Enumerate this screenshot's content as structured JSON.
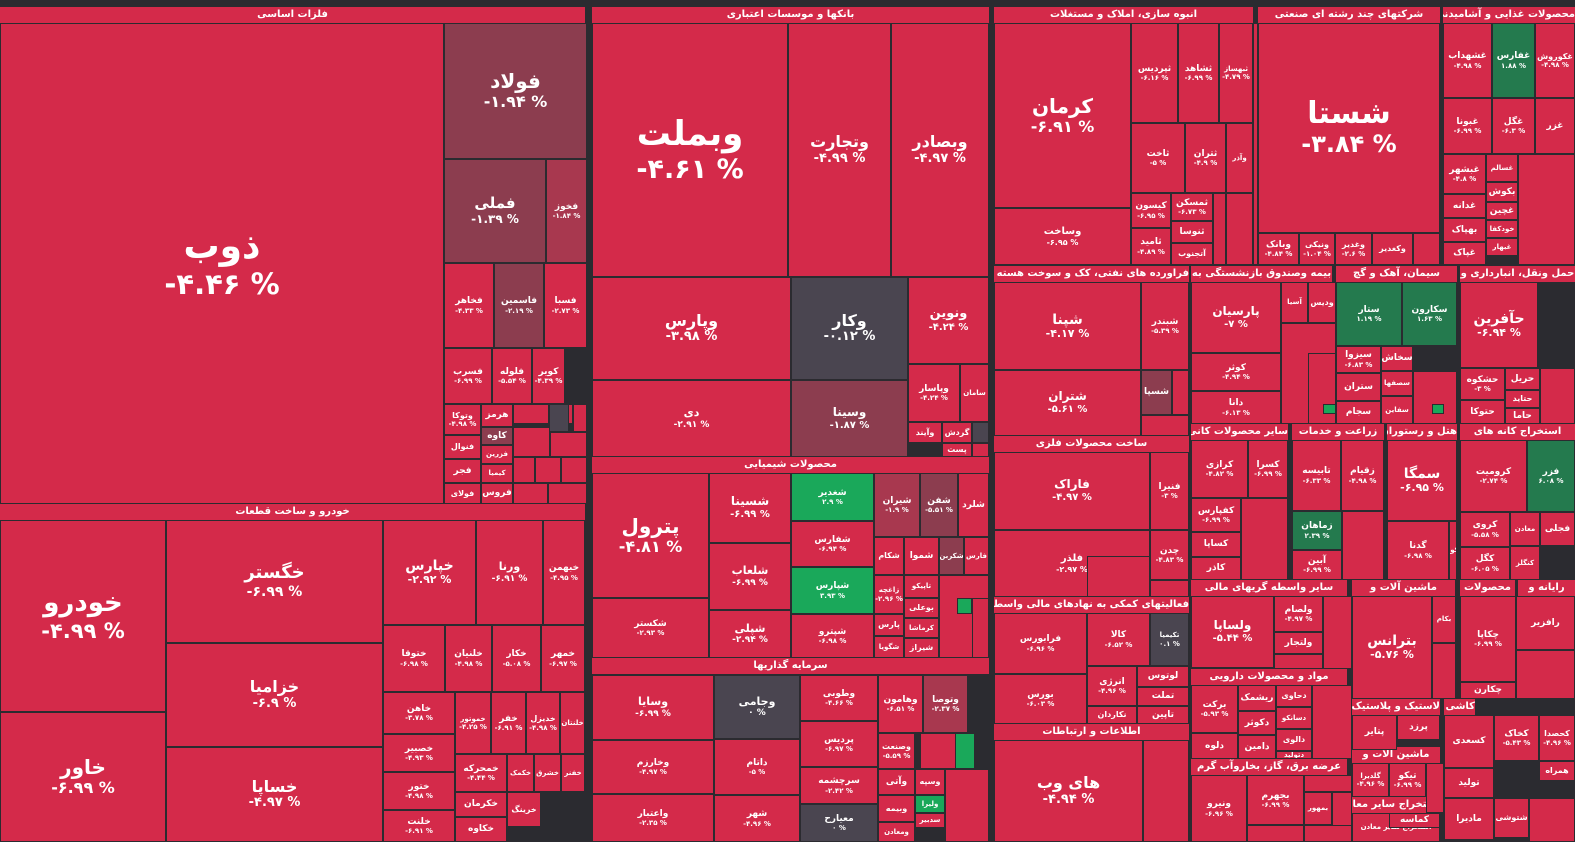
{
  "colors": {
    "red": "#d42a4a",
    "dark_red": "#8c3d4f",
    "mid_red": "#a8384f",
    "neutral": "#4a4550",
    "green": "#1aa85a",
    "dark_green": "#247a4e",
    "background": "#2b2b30"
  },
  "sectors": [
    {
      "name": "فلزات اساسی"
    },
    {
      "name": "بانکها و موسسات اعتباری"
    },
    {
      "name": "انبوه سازی، املاک و مستغلات"
    },
    {
      "name": "شرکتهای چند رشته ای صنعتی"
    },
    {
      "name": "محصولات غذایی و آشامیدنی"
    },
    {
      "name": "خودرو و ساخت قطعات"
    },
    {
      "name": "محصولات شیمیایی"
    },
    {
      "name": "سرمایه گذاریها"
    },
    {
      "name": "فراورده های نفتی، کک و سوخت هسته ای"
    },
    {
      "name": "بیمه وصندوق بازنشستگی به"
    },
    {
      "name": "سیمان، آهک و گچ"
    },
    {
      "name": "حمل ونقل، انبارداری و"
    },
    {
      "name": "ساخت محصولات فلزی"
    },
    {
      "name": "سایر محصولات کانی"
    },
    {
      "name": "زراعت و خدمات"
    },
    {
      "name": "هتل و رستوران"
    },
    {
      "name": "استخراج کانه های"
    },
    {
      "name": "فعالیتهای کمکی به نهادهای مالی واسط"
    },
    {
      "name": "سایر واسطه گریهای مالی"
    },
    {
      "name": "ماشین آلات و"
    },
    {
      "name": "محصولات"
    },
    {
      "name": "رایانه و"
    },
    {
      "name": "مواد و محصولات دارویی"
    },
    {
      "name": "لاستیک و پلاستیک"
    },
    {
      "name": "کاشی و"
    },
    {
      "name": "اطلاعات و ارتباطات"
    },
    {
      "name": "عرضه برق، گاز، بخاروآب گرم"
    },
    {
      "name": "ماشین آلات و"
    },
    {
      "name": "استخراج سایر معادن"
    }
  ],
  "tiles": [
    {
      "n": "ذوب",
      "p": "-۴.۴۶ %"
    },
    {
      "n": "فولاد",
      "p": "-۱.۹۴ %"
    },
    {
      "n": "فملی",
      "p": "-۱.۳۹ %"
    },
    {
      "n": "فخوز",
      "p": "-۱.۸۴ %"
    },
    {
      "n": "فخاهر",
      "p": "-۴.۳۳ %"
    },
    {
      "n": "فاسمین",
      "p": "-۲.۱۹ %"
    },
    {
      "n": "فسبا",
      "p": "-۲.۷۳ %"
    },
    {
      "n": "فسرب",
      "p": "-۶.۹۹ %"
    },
    {
      "n": "فلوله",
      "p": "-۵.۵۴ %"
    },
    {
      "n": "کویر",
      "p": "-۴.۳۹ %"
    },
    {
      "n": "وتوکا",
      "p": "-۴.۹۸ %"
    },
    {
      "n": "هرمز",
      "p": ""
    },
    {
      "n": "کاوه",
      "p": ""
    },
    {
      "n": "فنوال",
      "p": ""
    },
    {
      "n": "فزرین",
      "p": ""
    },
    {
      "n": "فجر",
      "p": ""
    },
    {
      "n": "کیمیا",
      "p": ""
    },
    {
      "n": "فولای",
      "p": ""
    },
    {
      "n": "فروس",
      "p": ""
    },
    {
      "n": "وبملت",
      "p": "-۴.۶۱ %"
    },
    {
      "n": "وتجارت",
      "p": "-۴.۹۹ %"
    },
    {
      "n": "وبصادر",
      "p": "-۴.۹۷ %"
    },
    {
      "n": "وپارس",
      "p": "-۳.۹۸ %"
    },
    {
      "n": "وکار",
      "p": "-۰.۱۲ %"
    },
    {
      "n": "ونوین",
      "p": "-۴.۲۴ %"
    },
    {
      "n": "دی",
      "p": "-۲.۹۱ %"
    },
    {
      "n": "وسینا",
      "p": "-۱.۸۷ %"
    },
    {
      "n": "وپاسار",
      "p": "-۴.۲۴ %"
    },
    {
      "n": "سامان",
      "p": ""
    },
    {
      "n": "وآیند",
      "p": ""
    },
    {
      "n": "گردش",
      "p": ""
    },
    {
      "n": "پست",
      "p": ""
    },
    {
      "n": "کرمان",
      "p": "-۶.۹۱ %"
    },
    {
      "n": "ثپردیس",
      "p": "-۶.۱۶ %"
    },
    {
      "n": "ثشاهد",
      "p": "-۶.۹۹ %"
    },
    {
      "n": "ثبهساز",
      "p": "-۴.۷۹ %"
    },
    {
      "n": "ثاخت",
      "p": "-۵ %"
    },
    {
      "n": "ثتران",
      "p": "-۴.۹ %"
    },
    {
      "n": "وآذر",
      "p": ""
    },
    {
      "n": "وساخت",
      "p": "-۶.۹۵ %"
    },
    {
      "n": "کیسون",
      "p": "-۶.۹۵ %"
    },
    {
      "n": "ثمسکن",
      "p": "-۶.۷۳ %"
    },
    {
      "n": "ثامید",
      "p": "-۴.۸۹ %"
    },
    {
      "n": "ثنوسا",
      "p": ""
    },
    {
      "n": "آتجنوب",
      "p": ""
    },
    {
      "n": "شستا",
      "p": "-۳.۸۴ %"
    },
    {
      "n": "وبانک",
      "p": "-۴.۸۴ %"
    },
    {
      "n": "ونیکی",
      "p": "-۱.۰۴ %"
    },
    {
      "n": "وغدیر",
      "p": "-۲.۶ %"
    },
    {
      "n": "وکغدیر",
      "p": ""
    },
    {
      "n": "غشهداب",
      "p": "-۴.۹۸ %"
    },
    {
      "n": "غفارس",
      "p": "۱.۸۸ %"
    },
    {
      "n": "غکوروش",
      "p": "-۴.۹۸ %"
    },
    {
      "n": "غبونا",
      "p": "-۶.۹۹ %"
    },
    {
      "n": "غگل",
      "p": "-۶.۳ %"
    },
    {
      "n": "غزر",
      "p": ""
    },
    {
      "n": "غبشهر",
      "p": "-۴.۸ %"
    },
    {
      "n": "غسالم",
      "p": ""
    },
    {
      "n": "بکوش",
      "p": ""
    },
    {
      "n": "غدانه",
      "p": ""
    },
    {
      "n": "غچین",
      "p": ""
    },
    {
      "n": "خودکفا",
      "p": ""
    },
    {
      "n": "بهپاک",
      "p": ""
    },
    {
      "n": "غبهار",
      "p": ""
    },
    {
      "n": "غپاک",
      "p": ""
    },
    {
      "n": "خودرو",
      "p": "-۴.۹۹ %"
    },
    {
      "n": "خگستر",
      "p": "-۶.۹۹ %"
    },
    {
      "n": "خزامیا",
      "p": "-۶.۹ %"
    },
    {
      "n": "خاور",
      "p": "-۶.۹۹ %"
    },
    {
      "n": "خساپا",
      "p": "-۴.۹۷ %"
    },
    {
      "n": "خپارس",
      "p": "-۲.۹۲ %"
    },
    {
      "n": "ورنا",
      "p": "-۶.۹۱ %"
    },
    {
      "n": "خبهمن",
      "p": "-۴.۹۵ %"
    },
    {
      "n": "ختوقا",
      "p": "-۶.۹۸ %"
    },
    {
      "n": "خلنیان",
      "p": "-۴.۹۸ %"
    },
    {
      "n": "خکار",
      "p": "-۵.۰۸ %"
    },
    {
      "n": "خمهر",
      "p": "-۶.۹۷ %"
    },
    {
      "n": "خاهن",
      "p": "-۳.۷۸ %"
    },
    {
      "n": "خموتور",
      "p": "-۴.۲۵ %"
    },
    {
      "n": "خفر",
      "p": "-۶.۹۱ %"
    },
    {
      "n": "خدیزل",
      "p": "-۴.۹۸ %"
    },
    {
      "n": "خلنتان",
      "p": ""
    },
    {
      "n": "خصبیر",
      "p": "-۴.۹۳ %"
    },
    {
      "n": "ختور",
      "p": "-۴.۹۸ %"
    },
    {
      "n": "خلنت",
      "p": "-۶.۹۱ %"
    },
    {
      "n": "خمحرکه",
      "p": "-۴.۴۴ %"
    },
    {
      "n": "خکمک",
      "p": ""
    },
    {
      "n": "خشرق",
      "p": ""
    },
    {
      "n": "خفنر",
      "p": ""
    },
    {
      "n": "خکرمان",
      "p": ""
    },
    {
      "n": "خرینگ",
      "p": ""
    },
    {
      "n": "خکاوه",
      "p": ""
    },
    {
      "n": "پترول",
      "p": "-۴.۸۱ %"
    },
    {
      "n": "شسینا",
      "p": "-۶.۹۹ %"
    },
    {
      "n": "شغدیر",
      "p": "۲.۹ %"
    },
    {
      "n": "شیران",
      "p": "-۱.۹ %"
    },
    {
      "n": "شفن",
      "p": "-۵.۵۱ %"
    },
    {
      "n": "شلرد",
      "p": ""
    },
    {
      "n": "شفارس",
      "p": "-۶.۹۴ %"
    },
    {
      "n": "شکام",
      "p": ""
    },
    {
      "n": "شموا",
      "p": ""
    },
    {
      "n": "شکربن",
      "p": ""
    },
    {
      "n": "فارس",
      "p": ""
    },
    {
      "n": "شکستر",
      "p": "-۲.۹۳ %"
    },
    {
      "n": "شلعاب",
      "p": "-۶.۹۹ %"
    },
    {
      "n": "شپارس",
      "p": "۳.۹۳ %"
    },
    {
      "n": "زاغچه",
      "p": "-۲.۹۶ %"
    },
    {
      "n": "تاپیکو",
      "p": ""
    },
    {
      "n": "شپلی",
      "p": "-۲.۹۴ %"
    },
    {
      "n": "شپترو",
      "p": "-۶.۹۸ %"
    },
    {
      "n": "پارس",
      "p": ""
    },
    {
      "n": "بوعلی",
      "p": ""
    },
    {
      "n": "کرماشا",
      "p": ""
    },
    {
      "n": "شگویا",
      "p": ""
    },
    {
      "n": "شیراز",
      "p": ""
    },
    {
      "n": "وسایا",
      "p": "-۶.۹۹ %"
    },
    {
      "n": "وجامی",
      "p": "۰ %"
    },
    {
      "n": "وطوبی",
      "p": "-۴.۶۶ %"
    },
    {
      "n": "وهامون",
      "p": "-۶.۵۱ %"
    },
    {
      "n": "وتوصا",
      "p": "-۲.۳۷ %"
    },
    {
      "n": "وخارزم",
      "p": "-۴.۹۷ %"
    },
    {
      "n": "داتام",
      "p": "-۵ %"
    },
    {
      "n": "پردیس",
      "p": "-۶.۹۷ %"
    },
    {
      "n": "وصنعت",
      "p": "-۵.۵۹ %"
    },
    {
      "n": "سرچشمه",
      "p": "-۲.۴۲ %"
    },
    {
      "n": "وآتی",
      "p": ""
    },
    {
      "n": "وسپه",
      "p": ""
    },
    {
      "n": "واعتبار",
      "p": "-۲.۳۵ %"
    },
    {
      "n": "شهر",
      "p": "-۴.۹۶ %"
    },
    {
      "n": "معیارح",
      "p": "۰ %"
    },
    {
      "n": "وبیمه",
      "p": ""
    },
    {
      "n": "ولیرا",
      "p": ""
    },
    {
      "n": "سدبیر",
      "p": ""
    },
    {
      "n": "ومعادن",
      "p": ""
    },
    {
      "n": "شپنا",
      "p": "-۴.۱۷ %"
    },
    {
      "n": "شبندر",
      "p": "-۵.۳۹ %"
    },
    {
      "n": "شتران",
      "p": "-۵.۶۱ %"
    },
    {
      "n": "شسپا",
      "p": ""
    },
    {
      "n": "پارسیان",
      "p": "-۷ %"
    },
    {
      "n": "آسیا",
      "p": ""
    },
    {
      "n": "ودیس",
      "p": ""
    },
    {
      "n": "کوثر",
      "p": "-۴.۹۴ %"
    },
    {
      "n": "دانا",
      "p": "-۶.۱۳ %"
    },
    {
      "n": "ستار",
      "p": "۱.۱۹ %"
    },
    {
      "n": "سکارون",
      "p": "۱.۶۳ %"
    },
    {
      "n": "سیزوا",
      "p": "-۶.۸۳ %"
    },
    {
      "n": "سخاش",
      "p": ""
    },
    {
      "n": "ستران",
      "p": ""
    },
    {
      "n": "سصفها",
      "p": ""
    },
    {
      "n": "سجام",
      "p": ""
    },
    {
      "n": "سفاین",
      "p": ""
    },
    {
      "n": "حآفرین",
      "p": "-۶.۹۴ %"
    },
    {
      "n": "حشکوه",
      "p": "-۳ %"
    },
    {
      "n": "حریل",
      "p": ""
    },
    {
      "n": "حتاید",
      "p": ""
    },
    {
      "n": "حتوکا",
      "p": ""
    },
    {
      "n": "حاما",
      "p": ""
    },
    {
      "n": "فاراک",
      "p": "-۴.۹۷ %"
    },
    {
      "n": "فنیرا",
      "p": "-۳ %"
    },
    {
      "n": "فلذر",
      "p": "-۲.۹۷ %"
    },
    {
      "n": "چدن",
      "p": "-۴.۸۳ %"
    },
    {
      "n": "کرازی",
      "p": "-۴.۸۲ %"
    },
    {
      "n": "کسرا",
      "p": "-۶.۹۹ %"
    },
    {
      "n": "کفپارس",
      "p": "-۶.۹۹ %"
    },
    {
      "n": "کساپا",
      "p": ""
    },
    {
      "n": "کاذر",
      "p": ""
    },
    {
      "n": "تابیسه",
      "p": "-۶.۳۳ %"
    },
    {
      "n": "زقیام",
      "p": "-۴.۹۸ %"
    },
    {
      "n": "زماهان",
      "p": "۲.۳۹ %"
    },
    {
      "n": "آبین",
      "p": "-۶.۹۹ %"
    },
    {
      "n": "سمگا",
      "p": "-۶.۹۵ %"
    },
    {
      "n": "گدنا",
      "p": "-۶.۹۸ %"
    },
    {
      "n": "گکوثر",
      "p": ""
    },
    {
      "n": "کرومیت",
      "p": "-۲.۷۴ %"
    },
    {
      "n": "فزر",
      "p": "۶.۰۸ %"
    },
    {
      "n": "کروی",
      "p": "-۵.۵۸ %"
    },
    {
      "n": "کگل",
      "p": "-۶.۰۵ %"
    },
    {
      "n": "معادن",
      "p": ""
    },
    {
      "n": "کنگلز",
      "p": ""
    },
    {
      "n": "فجلی",
      "p": ""
    },
    {
      "n": "فرابورس",
      "p": "-۶.۹۶ %"
    },
    {
      "n": "کالا",
      "p": "-۶.۵۲ %"
    },
    {
      "n": "تکیمیا",
      "p": "۰.۱ %"
    },
    {
      "n": "انرژی",
      "p": "-۴.۹۶ %"
    },
    {
      "n": "لوتوس",
      "p": ""
    },
    {
      "n": "تملت",
      "p": ""
    },
    {
      "n": "بورس",
      "p": "-۶.۰۳ %"
    },
    {
      "n": "نکاردان",
      "p": ""
    },
    {
      "n": "تاپین",
      "p": ""
    },
    {
      "n": "ولساپا",
      "p": "-۵.۴۴ %"
    },
    {
      "n": "ولصام",
      "p": "-۴.۹۷ %"
    },
    {
      "n": "ولتجار",
      "p": ""
    },
    {
      "n": "بترانس",
      "p": "-۵.۷۶ %"
    },
    {
      "n": "بکام",
      "p": ""
    },
    {
      "n": "چکاپا",
      "p": "-۶.۹۹ %"
    },
    {
      "n": "رافزیر",
      "p": ""
    },
    {
      "n": "چکارن",
      "p": ""
    },
    {
      "n": "برکت",
      "p": "-۵.۹۳ %"
    },
    {
      "n": "ریشمک",
      "p": ""
    },
    {
      "n": "دحاوی",
      "p": ""
    },
    {
      "n": "دکوثر",
      "p": ""
    },
    {
      "n": "دسانکو",
      "p": ""
    },
    {
      "n": "دالوی",
      "p": ""
    },
    {
      "n": "دلوه",
      "p": ""
    },
    {
      "n": "دامین",
      "p": ""
    },
    {
      "n": "دتولید",
      "p": ""
    },
    {
      "n": "پتایر",
      "p": ""
    },
    {
      "n": "پرزد",
      "p": ""
    },
    {
      "n": "کسعدی",
      "p": ""
    },
    {
      "n": "کیسرا",
      "p": ""
    },
    {
      "n": "کخاک",
      "p": "-۵.۴۳ %"
    },
    {
      "n": "کحصدا",
      "p": "-۴.۹۶ %"
    },
    {
      "n": "همراه",
      "p": ""
    },
    {
      "n": "های وب",
      "p": "-۴.۹۴ %"
    },
    {
      "n": "ونیرو",
      "p": "-۶.۹۶ %"
    },
    {
      "n": "بجهرم",
      "p": "-۶.۹۹ %"
    },
    {
      "n": "بمهور",
      "p": ""
    },
    {
      "n": "گلدیرا",
      "p": "-۴.۹۶ %"
    },
    {
      "n": "تیکو",
      "p": "-۶.۹۹ %"
    },
    {
      "n": "تولید",
      "p": ""
    },
    {
      "n": "مادیرا",
      "p": ""
    },
    {
      "n": "استخراج سایر معادن",
      "p": ""
    },
    {
      "n": "کماسه",
      "p": ""
    },
    {
      "n": "شتوشی",
      "p": ""
    }
  ]
}
